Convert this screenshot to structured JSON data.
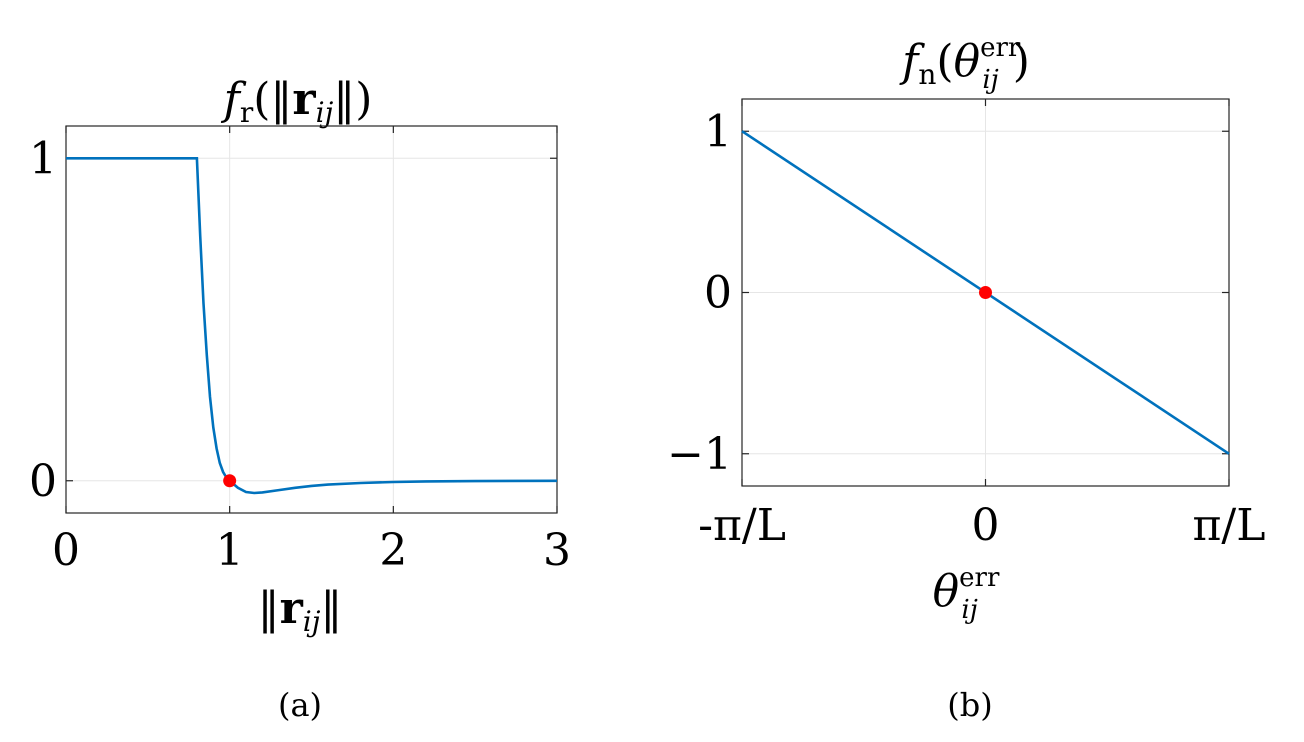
{
  "colors": {
    "line": "#0072BD",
    "marker": "#FF0000",
    "grid": "#E6E6E6",
    "axes": "#262626"
  },
  "chart_data": [
    {
      "panel_label": "(a)",
      "type": "line",
      "title": {
        "f": "f",
        "sub": "r",
        "open": "(‖",
        "r": "r",
        "rsub": "ij",
        "close": "‖)"
      },
      "xlabel": {
        "open": "‖",
        "r": "r",
        "rsub": "ij",
        "close": "‖"
      },
      "xlim": [
        0,
        3
      ],
      "ylim": [
        -0.1,
        1.1
      ],
      "xticks": [
        0,
        1,
        2,
        3
      ],
      "xtick_labels": [
        "0",
        "1",
        "2",
        "3"
      ],
      "yticks": [
        0,
        1
      ],
      "ytick_labels": [
        "0",
        "1"
      ],
      "grid": true,
      "series": [
        {
          "x": [
            0,
            0.8,
            0.82,
            0.84,
            0.86,
            0.88,
            0.9,
            0.92,
            0.94,
            0.96,
            0.98,
            1.0,
            1.05,
            1.1,
            1.15,
            1.2,
            1.3,
            1.4,
            1.5,
            1.6,
            1.8,
            2.0,
            2.2,
            2.5,
            3.0
          ],
          "y": [
            1,
            1,
            0.76,
            0.55,
            0.39,
            0.26,
            0.165,
            0.1,
            0.055,
            0.027,
            0.01,
            0,
            -0.022,
            -0.035,
            -0.038,
            -0.036,
            -0.029,
            -0.022,
            -0.016,
            -0.012,
            -0.007,
            -0.004,
            -0.002,
            -0.001,
            0
          ]
        }
      ],
      "markers": [
        {
          "x": 1,
          "y": 0
        }
      ]
    },
    {
      "panel_label": "(b)",
      "type": "line",
      "title": {
        "f": "f",
        "sub": "n",
        "open": "(",
        "theta": "θ",
        "sup": "err",
        "tsub": "ij",
        "close": ")"
      },
      "xlabel": {
        "theta": "θ",
        "sup": "err",
        "tsub": "ij"
      },
      "xlim": [
        -1,
        1
      ],
      "ylim": [
        -1.2,
        1.2
      ],
      "xticks": [
        -1,
        0,
        1
      ],
      "xtick_labels": [
        "-π/L",
        "0",
        "π/L"
      ],
      "yticks": [
        -1,
        0,
        1
      ],
      "ytick_labels": [
        "−1",
        "0",
        "1"
      ],
      "grid": true,
      "series": [
        {
          "x": [
            -1,
            1
          ],
          "y": [
            1,
            -1
          ]
        }
      ],
      "markers": [
        {
          "x": 0,
          "y": 0
        }
      ]
    }
  ]
}
